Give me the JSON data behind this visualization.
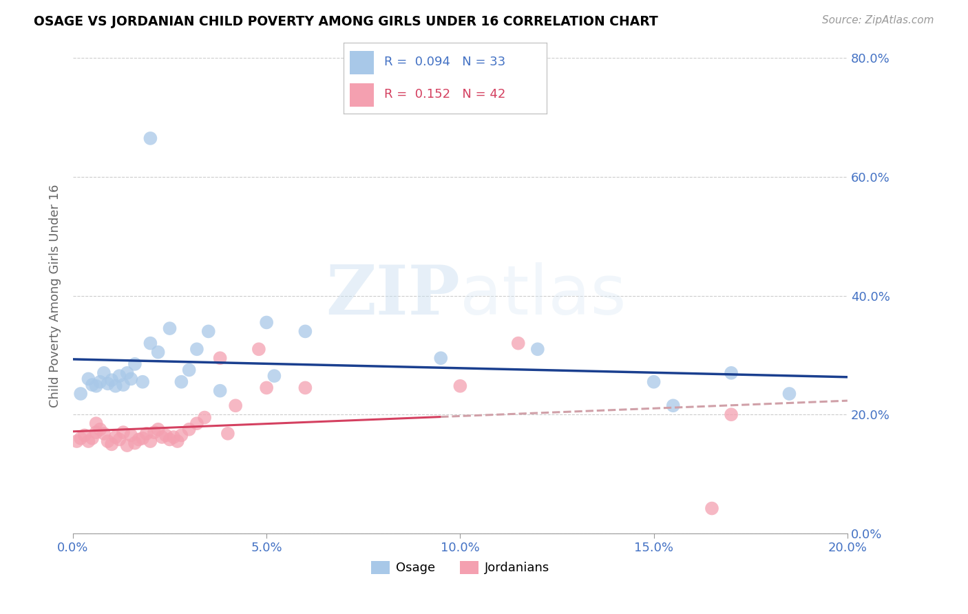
{
  "title": "OSAGE VS JORDANIAN CHILD POVERTY AMONG GIRLS UNDER 16 CORRELATION CHART",
  "source": "Source: ZipAtlas.com",
  "ylabel": "Child Poverty Among Girls Under 16",
  "watermark_zip": "ZIP",
  "watermark_atlas": "atlas",
  "legend_blue_r": "0.094",
  "legend_blue_n": "33",
  "legend_pink_r": "0.152",
  "legend_pink_n": "42",
  "legend_blue_label": "Osage",
  "legend_pink_label": "Jordanians",
  "xlim": [
    0.0,
    0.2
  ],
  "ylim": [
    0.0,
    0.8
  ],
  "yticks": [
    0.0,
    0.2,
    0.4,
    0.6,
    0.8
  ],
  "xticks": [
    0.0,
    0.05,
    0.1,
    0.15,
    0.2
  ],
  "blue_scatter_color": "#a8c8e8",
  "pink_scatter_color": "#f4a0b0",
  "blue_line_color": "#1a3f8f",
  "pink_line_color": "#d44060",
  "pink_line_dash_color": "#d0a0a8",
  "tick_color": "#4472c4",
  "grid_color": "#cccccc",
  "ylabel_color": "#666666",
  "osage_x": [
    0.002,
    0.004,
    0.005,
    0.006,
    0.007,
    0.008,
    0.009,
    0.01,
    0.011,
    0.012,
    0.013,
    0.014,
    0.015,
    0.016,
    0.018,
    0.02,
    0.022,
    0.025,
    0.028,
    0.03,
    0.032,
    0.035,
    0.038,
    0.05,
    0.052,
    0.06,
    0.095,
    0.12,
    0.15,
    0.155,
    0.17,
    0.185,
    0.02
  ],
  "osage_y": [
    0.235,
    0.26,
    0.25,
    0.248,
    0.255,
    0.27,
    0.252,
    0.258,
    0.248,
    0.265,
    0.25,
    0.27,
    0.26,
    0.285,
    0.255,
    0.32,
    0.305,
    0.345,
    0.255,
    0.275,
    0.31,
    0.34,
    0.24,
    0.355,
    0.265,
    0.34,
    0.295,
    0.31,
    0.255,
    0.215,
    0.27,
    0.235,
    0.665
  ],
  "jordanian_x": [
    0.001,
    0.002,
    0.003,
    0.004,
    0.005,
    0.006,
    0.006,
    0.007,
    0.008,
    0.009,
    0.01,
    0.011,
    0.012,
    0.013,
    0.014,
    0.015,
    0.016,
    0.017,
    0.018,
    0.019,
    0.02,
    0.021,
    0.022,
    0.023,
    0.024,
    0.025,
    0.026,
    0.027,
    0.028,
    0.03,
    0.032,
    0.034,
    0.038,
    0.04,
    0.042,
    0.048,
    0.05,
    0.06,
    0.1,
    0.115,
    0.165,
    0.17
  ],
  "jordanian_y": [
    0.155,
    0.16,
    0.165,
    0.155,
    0.16,
    0.185,
    0.17,
    0.175,
    0.168,
    0.155,
    0.15,
    0.162,
    0.158,
    0.17,
    0.148,
    0.165,
    0.152,
    0.158,
    0.16,
    0.168,
    0.155,
    0.17,
    0.175,
    0.162,
    0.165,
    0.158,
    0.162,
    0.155,
    0.165,
    0.175,
    0.185,
    0.195,
    0.295,
    0.168,
    0.215,
    0.31,
    0.245,
    0.245,
    0.248,
    0.32,
    0.042,
    0.2
  ]
}
